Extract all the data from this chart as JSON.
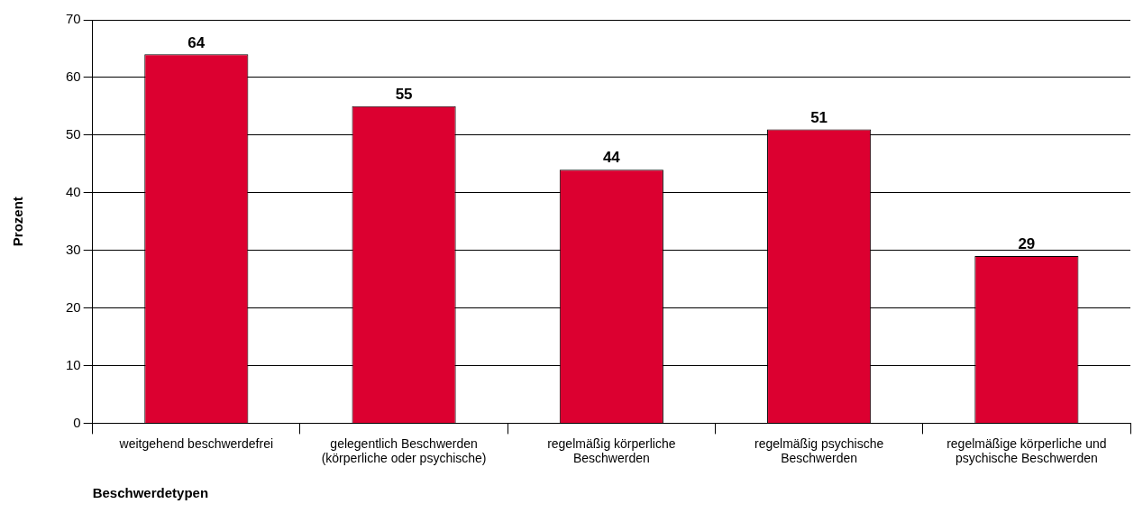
{
  "chart_data": {
    "type": "bar",
    "xlabel": "Beschwerdetypen",
    "ylabel": "Prozent",
    "categories": [
      "weitgehend beschwerdefrei",
      "gelegentlich Beschwerden (körperliche oder psychische)",
      "regelmäßig körperliche Beschwerden",
      "regelmäßig psychische Beschwerden",
      "regelmäßige körperliche und psychische Beschwerden"
    ],
    "values": [
      64,
      55,
      44,
      51,
      29
    ],
    "color": "#dc0030",
    "data_labels": true,
    "ylim": [
      0,
      70
    ],
    "yticks": [
      0,
      10,
      20,
      30,
      40,
      50,
      60,
      70
    ],
    "grid": "y",
    "legend": false
  }
}
